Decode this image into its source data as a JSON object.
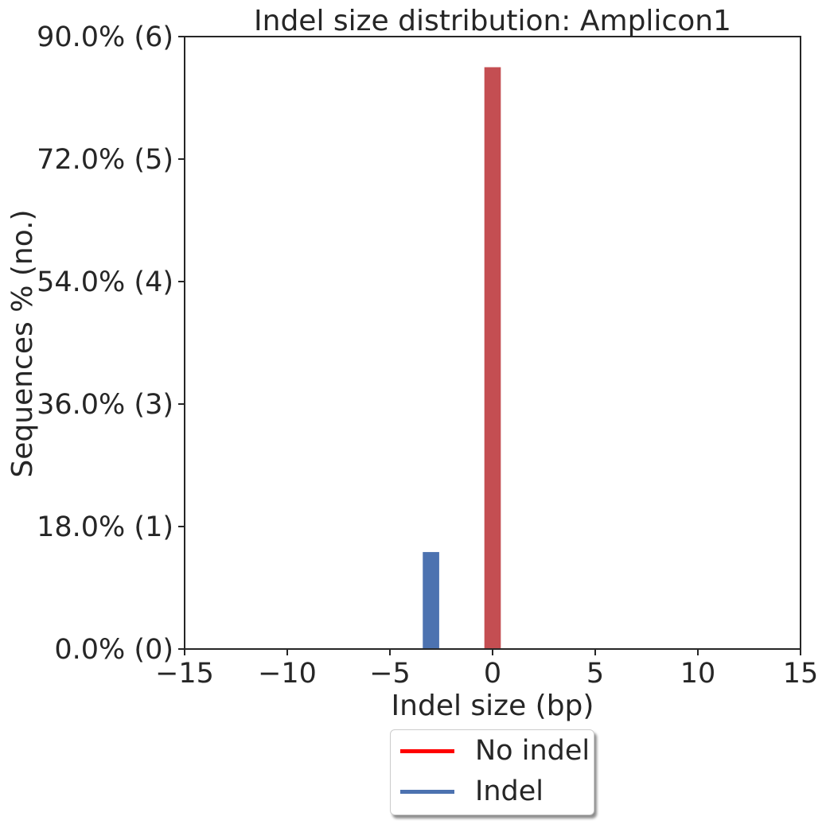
{
  "chart_data": {
    "type": "bar",
    "title": "Indel size distribution: Amplicon1",
    "xlabel": "Indel size (bp)",
    "ylabel": "Sequences % (no.)",
    "xlim": [
      -15,
      15
    ],
    "ylim": [
      0,
      6
    ],
    "x_ticks": [
      -15,
      -10,
      -5,
      0,
      5,
      10,
      15
    ],
    "x_tick_labels": [
      "−15",
      "−10",
      "−5",
      "0",
      "5",
      "10",
      "15"
    ],
    "y_ticks": [
      0,
      1.2,
      2.4,
      3.6,
      4.8,
      6
    ],
    "y_tick_labels": [
      "0.0% (0)",
      "18.0% (1)",
      "36.0% (3)",
      "54.0% (4)",
      "72.0% (5)",
      "90.0% (6)"
    ],
    "bar_width": 0.8,
    "series": [
      {
        "name": "No indel",
        "color": "#c44e52",
        "x": [
          0
        ],
        "values": [
          5.7
        ]
      },
      {
        "name": "Indel",
        "color": "#4c72b0",
        "x": [
          -3
        ],
        "values": [
          0.95
        ]
      }
    ],
    "legend": {
      "position": "bottom-center",
      "items": [
        {
          "label": "No indel",
          "color": "#ff0000"
        },
        {
          "label": "Indel",
          "color": "#4c72b0"
        }
      ]
    },
    "grid": false
  }
}
